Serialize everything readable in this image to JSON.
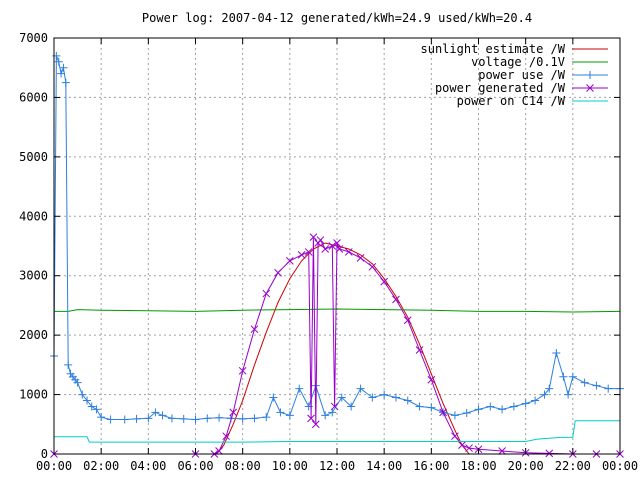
{
  "chart_data": {
    "type": "line",
    "title": "Power log: 2007-04-12 generated/kWh=24.9 used/kWh=20.4",
    "xlabel": "",
    "ylabel": "",
    "x_ticks": [
      "00:00",
      "02:00",
      "04:00",
      "06:00",
      "08:00",
      "10:00",
      "12:00",
      "14:00",
      "16:00",
      "18:00",
      "20:00",
      "22:00",
      "00:00"
    ],
    "xlim_hours": [
      0,
      24
    ],
    "ylim": [
      0,
      7000
    ],
    "y_ticks": [
      0,
      1000,
      2000,
      3000,
      4000,
      5000,
      6000,
      7000
    ],
    "grid": true,
    "legend_position": "top-right",
    "series": [
      {
        "name": "sunlight estimate /W",
        "color": "#cc0000",
        "x": [
          6.9,
          7.2,
          7.6,
          8.0,
          8.5,
          9.0,
          9.5,
          10.0,
          10.5,
          11.0,
          11.5,
          12.0,
          12.5,
          13.0,
          13.5,
          14.0,
          14.5,
          15.0,
          15.5,
          16.0,
          16.5,
          17.0,
          17.3,
          17.6
        ],
        "y": [
          0,
          150,
          500,
          900,
          1500,
          2050,
          2550,
          2950,
          3250,
          3450,
          3550,
          3500,
          3450,
          3350,
          3200,
          2950,
          2650,
          2300,
          1850,
          1350,
          850,
          400,
          150,
          0
        ]
      },
      {
        "name": "voltage /0.1V",
        "color": "#009900",
        "x": [
          0,
          0.6,
          1,
          2,
          4,
          6,
          8,
          10,
          12,
          14,
          16,
          18,
          20,
          22,
          24
        ],
        "y": [
          2400,
          2400,
          2430,
          2420,
          2410,
          2400,
          2420,
          2430,
          2440,
          2430,
          2420,
          2400,
          2400,
          2390,
          2400
        ]
      },
      {
        "name": "power use /W",
        "color": "#2e7fe0",
        "x": [
          0,
          0.1,
          0.2,
          0.3,
          0.4,
          0.5,
          0.6,
          0.7,
          0.8,
          0.9,
          1.0,
          1.2,
          1.4,
          1.6,
          1.8,
          2.0,
          2.4,
          3.0,
          3.5,
          4.0,
          4.3,
          4.6,
          5.0,
          5.5,
          6.0,
          6.5,
          7.0,
          7.5,
          8.0,
          8.5,
          9.0,
          9.3,
          9.6,
          10.0,
          10.4,
          10.8,
          11.1,
          11.5,
          11.8,
          12.2,
          12.6,
          13.0,
          13.5,
          14.0,
          14.5,
          15.0,
          15.5,
          16.0,
          16.5,
          17.0,
          17.5,
          18.0,
          18.5,
          19.0,
          19.5,
          20.0,
          20.4,
          20.8,
          21.0,
          21.3,
          21.6,
          21.8,
          22.0,
          22.5,
          23.0,
          23.5,
          24.0
        ],
        "y": [
          1650,
          6700,
          6600,
          6400,
          6500,
          6250,
          1500,
          1350,
          1300,
          1250,
          1200,
          1000,
          900,
          800,
          750,
          620,
          580,
          580,
          590,
          600,
          700,
          650,
          600,
          590,
          580,
          600,
          610,
          600,
          590,
          600,
          620,
          950,
          700,
          650,
          1100,
          800,
          1150,
          650,
          700,
          950,
          800,
          1100,
          950,
          1000,
          950,
          900,
          800,
          780,
          700,
          650,
          690,
          750,
          800,
          750,
          800,
          850,
          900,
          1000,
          1100,
          1700,
          1300,
          1000,
          1300,
          1200,
          1150,
          1100,
          1100
        ]
      },
      {
        "name": "power generated /W",
        "color": "#9900cc",
        "x": [
          0,
          6.0,
          6.8,
          7.0,
          7.3,
          7.6,
          8.0,
          8.5,
          9.0,
          9.5,
          10.0,
          10.5,
          10.8,
          10.9,
          11.0,
          11.1,
          11.2,
          11.3,
          11.5,
          11.8,
          11.9,
          12.0,
          12.1,
          12.5,
          13.0,
          13.5,
          14.0,
          14.5,
          15.0,
          15.5,
          16.0,
          16.5,
          17.0,
          17.3,
          17.6,
          18.0,
          19.0,
          20.0,
          21.0,
          22.0,
          23.0,
          24.0
        ],
        "y": [
          0,
          0,
          0,
          50,
          300,
          700,
          1400,
          2100,
          2700,
          3050,
          3250,
          3350,
          3400,
          600,
          3650,
          500,
          3550,
          3600,
          3450,
          3500,
          800,
          3550,
          3450,
          3400,
          3300,
          3150,
          2900,
          2600,
          2250,
          1750,
          1250,
          700,
          300,
          150,
          100,
          80,
          50,
          20,
          10,
          0,
          0,
          0
        ]
      },
      {
        "name": "power on C14 /W",
        "color": "#00cccc",
        "x": [
          0,
          1.4,
          1.5,
          4,
          6,
          8,
          10,
          12,
          16,
          18,
          20,
          20.5,
          21.5,
          22,
          22.1,
          22.5,
          24
        ],
        "y": [
          290,
          290,
          200,
          200,
          200,
          200,
          210,
          210,
          210,
          210,
          210,
          250,
          280,
          280,
          560,
          560,
          560
        ]
      }
    ]
  }
}
